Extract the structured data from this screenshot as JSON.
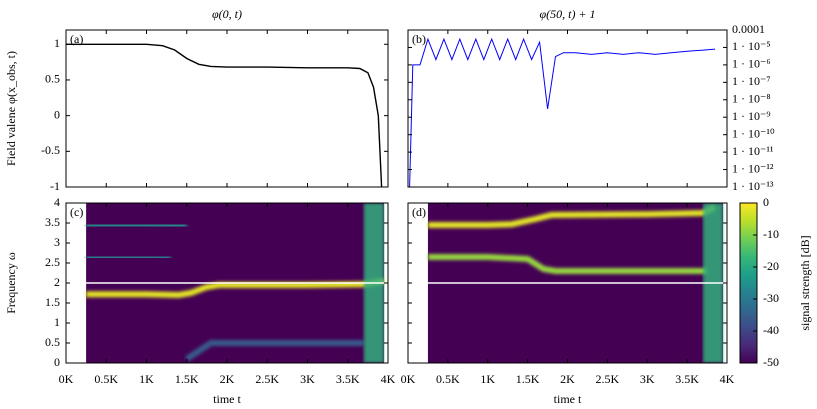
{
  "chart_data": [
    {
      "type": "line",
      "title": "φ(0, t)",
      "panel_label": "(a)",
      "ylabel": "Field valene φ(x_obs, t)",
      "x": [
        0,
        1000,
        1200,
        1350,
        1500,
        1650,
        1800,
        2000,
        2500,
        3000,
        3500,
        3650,
        3750,
        3820,
        3880,
        3920
      ],
      "values": [
        1,
        1,
        0.98,
        0.92,
        0.8,
        0.72,
        0.69,
        0.68,
        0.68,
        0.67,
        0.67,
        0.66,
        0.6,
        0.4,
        0,
        -1
      ],
      "color": "#000000",
      "xlim": [
        0,
        4000
      ],
      "ylim": [
        -1,
        1.2
      ],
      "xticks": [
        0,
        500,
        1000,
        1500,
        2000,
        2500,
        3000,
        3500,
        4000
      ],
      "yticks": [
        -1,
        -0.5,
        0,
        0.5,
        1
      ]
    },
    {
      "type": "line",
      "title": "φ(50, t) + 1",
      "panel_label": "(b)",
      "log_y": true,
      "y_axis_side": "right",
      "x": [
        20,
        60,
        150,
        250,
        350,
        450,
        550,
        650,
        750,
        850,
        950,
        1050,
        1150,
        1250,
        1350,
        1450,
        1550,
        1650,
        1750,
        1850,
        1950,
        2100,
        2300,
        2500,
        2700,
        2900,
        3100,
        3300,
        3500,
        3700,
        3850
      ],
      "values": [
        1e-13,
        1e-06,
        1e-06,
        3e-05,
        2e-06,
        3e-05,
        2e-06,
        3e-05,
        2e-06,
        3e-05,
        2e-06,
        3e-05,
        2e-06,
        3e-05,
        2e-06,
        3e-05,
        2e-06,
        2e-05,
        3e-09,
        3e-06,
        5e-06,
        5e-06,
        4e-06,
        5e-06,
        4e-06,
        5e-06,
        4e-06,
        5e-06,
        6e-06,
        7e-06,
        8e-06
      ],
      "color": "#0000ff",
      "xlim": [
        0,
        4000
      ],
      "ylim": [
        1e-13,
        0.0001
      ],
      "xticks": [
        0,
        500,
        1000,
        1500,
        2000,
        2500,
        3000,
        3500,
        4000
      ],
      "yticks": [
        0.0001,
        {
          "value": 1e-05,
          "label": "1 · 10⁻⁵"
        },
        {
          "value": 1e-06,
          "label": "1 · 10⁻⁶"
        },
        {
          "value": 1e-07,
          "label": "1 · 10⁻⁷"
        },
        {
          "value": 1e-08,
          "label": "1 · 10⁻⁸"
        },
        {
          "value": 1e-09,
          "label": "1 · 10⁻⁹"
        },
        {
          "value": 1e-10,
          "label": "1 · 10⁻¹⁰"
        },
        {
          "value": 1e-11,
          "label": "1 · 10⁻¹¹"
        },
        {
          "value": 1e-12,
          "label": "1 · 10⁻¹²"
        },
        {
          "value": 1e-13,
          "label": "1 · 10⁻¹³"
        }
      ]
    },
    {
      "type": "spectrogram",
      "panel_label": "(c)",
      "ylabel": "Frequency ω",
      "xlabel": "time t",
      "extent": [
        250,
        3950
      ],
      "background_level": -50,
      "edge_band": [
        3700,
        3950
      ],
      "edge_level": -18,
      "reference_line": 2,
      "ridges": [
        {
          "x": [
            250,
            1000,
            1400,
            1550,
            1750,
            1900,
            3000,
            3700,
            3950
          ],
          "y": [
            1.72,
            1.72,
            1.7,
            1.75,
            1.9,
            1.95,
            1.95,
            1.97,
            2.05
          ],
          "level": -2
        },
        {
          "x": [
            250,
            1000,
            1500
          ],
          "y": [
            3.45,
            3.45,
            3.43
          ],
          "level": -25
        },
        {
          "x": [
            250,
            1000,
            1300
          ],
          "y": [
            2.65,
            2.65,
            2.64
          ],
          "level": -28
        },
        {
          "x": [
            1500,
            1800,
            3000,
            3700
          ],
          "y": [
            0.1,
            0.5,
            0.5,
            0.5
          ],
          "level": -36
        },
        {
          "x": [
            1700,
            3000,
            3700
          ],
          "y": [
            0.3,
            0.3,
            0.3
          ],
          "level": -38
        }
      ],
      "xlim": [
        0,
        4000
      ],
      "ylim": [
        0,
        4
      ],
      "xticks": [
        {
          "value": 0,
          "label": "0K"
        },
        {
          "value": 500,
          "label": "0.5K"
        },
        {
          "value": 1000,
          "label": "1K"
        },
        {
          "value": 1500,
          "label": "1.5K"
        },
        {
          "value": 2000,
          "label": "2K"
        },
        {
          "value": 2500,
          "label": "2.5K"
        },
        {
          "value": 3000,
          "label": "3K"
        },
        {
          "value": 3500,
          "label": "3.5K"
        },
        {
          "value": 4000,
          "label": "4K"
        }
      ],
      "yticks": [
        0,
        0.5,
        1,
        1.5,
        2,
        2.5,
        3,
        3.5,
        4
      ]
    },
    {
      "type": "spectrogram",
      "panel_label": "(d)",
      "xlabel": "time t",
      "extent": [
        250,
        3950
      ],
      "background_level": -50,
      "edge_band": [
        3700,
        3950
      ],
      "edge_level": -18,
      "reference_line": 2,
      "ridges": [
        {
          "x": [
            250,
            1000,
            1300,
            1600,
            1800,
            3000,
            3700,
            3850
          ],
          "y": [
            3.45,
            3.45,
            3.47,
            3.6,
            3.7,
            3.72,
            3.75,
            3.9
          ],
          "level": -2
        },
        {
          "x": [
            250,
            1000,
            1500,
            1700,
            1850,
            3000,
            3750
          ],
          "y": [
            2.65,
            2.65,
            2.6,
            2.35,
            2.3,
            2.3,
            2.3
          ],
          "level": -8
        },
        {
          "x": [
            250,
            1000,
            1500
          ],
          "y": [
            2.1,
            2.1,
            2.1
          ],
          "level": -18
        },
        {
          "x": [
            1800,
            3000,
            3750
          ],
          "y": [
            2.2,
            2.2,
            2.2
          ],
          "level": -15
        },
        {
          "x": [
            1800,
            3000,
            3750
          ],
          "y": [
            2.05,
            2.05,
            2.05
          ],
          "level": -20
        },
        {
          "x": [
            1800,
            3000,
            3750
          ],
          "y": [
            3.3,
            3.3,
            3.3
          ],
          "level": -22
        },
        {
          "x": [
            1800,
            3000,
            3750
          ],
          "y": [
            3.45,
            3.45,
            3.45
          ],
          "level": -26
        },
        {
          "x": [
            400,
            3000,
            3700
          ],
          "y": [
            0.3,
            0.3,
            0.3
          ],
          "level": -44
        }
      ],
      "xlim": [
        0,
        4000
      ],
      "ylim": [
        0,
        4
      ],
      "xticks": [
        {
          "value": 0,
          "label": "0K"
        },
        {
          "value": 500,
          "label": "0.5K"
        },
        {
          "value": 1000,
          "label": "1K"
        },
        {
          "value": 1500,
          "label": "1.5K"
        },
        {
          "value": 2000,
          "label": "2K"
        },
        {
          "value": 2500,
          "label": "2.5K"
        },
        {
          "value": 3000,
          "label": "3K"
        },
        {
          "value": 3500,
          "label": "3.5K"
        },
        {
          "value": 4000,
          "label": "4K"
        }
      ],
      "yticks": [
        0,
        0.5,
        1,
        1.5,
        2,
        2.5,
        3,
        3.5,
        4
      ]
    },
    {
      "type": "colorbar",
      "label": "signal strength [dB]",
      "clim": [
        -50,
        0
      ],
      "ticks": [
        0,
        -10,
        -20,
        -30,
        -40,
        -50
      ]
    }
  ]
}
